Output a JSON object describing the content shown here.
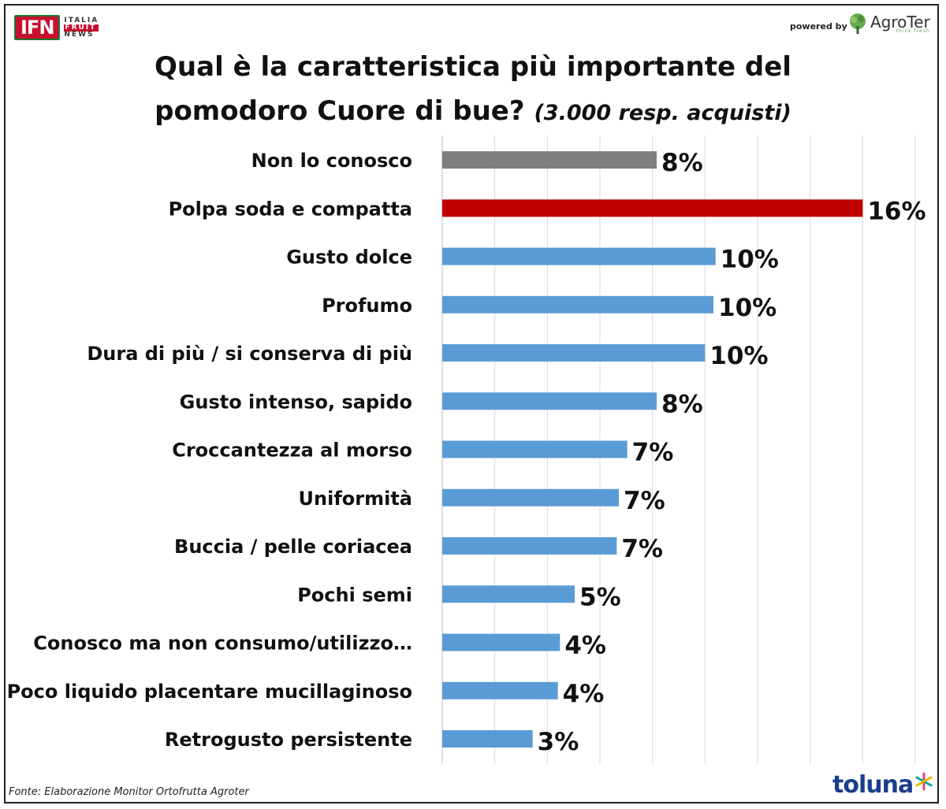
{
  "header": {
    "ifn_mark": "IFN",
    "ifn_words": [
      "ITALIA",
      "FRUIT",
      "NEWS"
    ],
    "powered_by": "powered by",
    "agroter_name": "AgroTer",
    "agroter_tagline": "think fresh"
  },
  "colors": {
    "bar_default": "#5b9bd5",
    "bar_highlight": "#c00000",
    "bar_neutral": "#7f7f7f",
    "grid": "#d9d9d9"
  },
  "chart_data": {
    "type": "bar",
    "orientation": "horizontal",
    "title_line1": "Qual è la caratteristica più importante del",
    "title_line2": "pomodoro Cuore di bue?",
    "subtitle": "(3.000 resp. acquisti)",
    "categories": [
      "Non lo conosco",
      "Polpa soda e compatta",
      "Gusto dolce",
      "Profumo",
      "Dura di più / si conserva di più",
      "Gusto intenso, sapido",
      "Croccantezza al morso",
      "Uniformità",
      "Buccia / pelle coriacea",
      "Pochi semi",
      "Conosco ma non consumo/utilizzo…",
      "Poco liquido placentare mucillaginoso",
      "Retrogusto persistente"
    ],
    "values": [
      10.2,
      20.0,
      13.0,
      12.9,
      12.5,
      10.2,
      8.8,
      8.4,
      8.3,
      6.3,
      5.6,
      5.5,
      4.3
    ],
    "labels": [
      "8%",
      "16%",
      "10%",
      "10%",
      "10%",
      "8%",
      "7%",
      "7%",
      "7%",
      "5%",
      "4%",
      "4%",
      "3%"
    ],
    "bar_color_keys": [
      "neutral",
      "highlight",
      "default",
      "default",
      "default",
      "default",
      "default",
      "default",
      "default",
      "default",
      "default",
      "default",
      "default"
    ],
    "xlim": [
      0,
      22.5
    ],
    "grid": true,
    "legend": "none"
  },
  "footer": {
    "source": "Fonte: Elaborazione Monitor Ortofrutta Agroter",
    "toluna": "toluna"
  }
}
